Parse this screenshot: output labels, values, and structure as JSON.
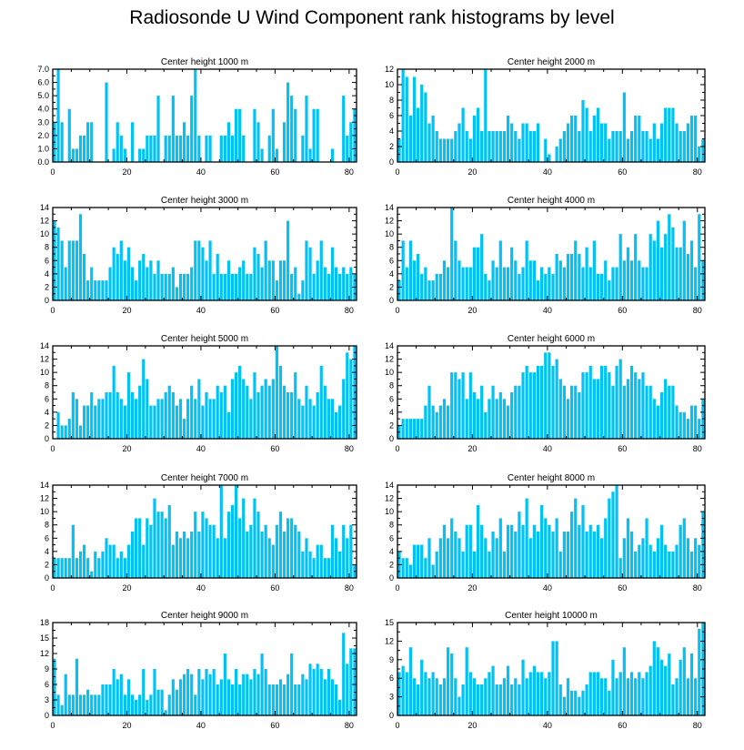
{
  "title": "Radiosonde U Wind Component rank histograms by level",
  "colors": {
    "bar": "#00c2f6",
    "axis": "#000000",
    "background": "#ffffff"
  },
  "chart_data": [
    {
      "type": "bar",
      "title": "Center height 1000 m",
      "xlim": [
        0,
        82
      ],
      "ylim": [
        0,
        7
      ],
      "xticks": [
        0,
        20,
        40,
        60,
        80
      ],
      "yticks": [
        0,
        1,
        2,
        3,
        4,
        5,
        6,
        7
      ],
      "ytick_labels": [
        "0.0",
        "1.0",
        "2.0",
        "3.0",
        "4.0",
        "5.0",
        "6.0",
        "7.0"
      ],
      "values": [
        3,
        7,
        3,
        0,
        4,
        1,
        1,
        2,
        2,
        3,
        3,
        0,
        0,
        0,
        6,
        0,
        1,
        3,
        2,
        1,
        0,
        3,
        0,
        1,
        1,
        2,
        2,
        2,
        5,
        0,
        2,
        2,
        5,
        2,
        2,
        3,
        2,
        5,
        7,
        2,
        0,
        2,
        2,
        0,
        0,
        2,
        2,
        3,
        2,
        4,
        4,
        2,
        0,
        0,
        4,
        3,
        1,
        0,
        2,
        4,
        1,
        0,
        3,
        6,
        5,
        4,
        0,
        2,
        5,
        1,
        4,
        4,
        0,
        0,
        0,
        1,
        0,
        0,
        5,
        2,
        3,
        4
      ]
    },
    {
      "type": "bar",
      "title": "Center height 2000 m",
      "xlim": [
        0,
        82
      ],
      "ylim": [
        0,
        12
      ],
      "xticks": [
        0,
        20,
        40,
        60,
        80
      ],
      "yticks": [
        0,
        2,
        4,
        6,
        8,
        10,
        12
      ],
      "ytick_labels": [
        "0",
        "2",
        "4",
        "6",
        "8",
        "10",
        "12"
      ],
      "values": [
        3,
        12,
        11,
        6,
        11,
        7,
        10,
        9,
        5,
        6,
        4,
        3,
        3,
        3,
        3,
        4,
        5,
        7,
        4,
        3,
        6,
        7,
        4,
        12,
        4,
        4,
        4,
        4,
        4,
        6,
        5,
        4,
        3,
        5,
        5,
        4,
        4,
        5,
        0,
        3,
        1,
        0,
        2,
        3,
        4,
        5,
        6,
        6,
        4,
        8,
        7,
        4,
        6,
        7,
        5,
        5,
        3,
        4,
        4,
        4,
        9,
        3,
        4,
        6,
        6,
        4,
        4,
        3,
        5,
        3,
        5,
        7,
        7,
        7,
        5,
        4,
        4,
        5,
        6,
        6,
        2,
        3
      ]
    },
    {
      "type": "bar",
      "title": "Center height 3000 m",
      "xlim": [
        0,
        82
      ],
      "ylim": [
        0,
        14
      ],
      "xticks": [
        0,
        20,
        40,
        60,
        80
      ],
      "yticks": [
        0,
        2,
        4,
        6,
        8,
        10,
        12,
        14
      ],
      "ytick_labels": [
        "0",
        "2",
        "4",
        "6",
        "8",
        "10",
        "12",
        "14"
      ],
      "values": [
        12,
        11,
        9,
        5,
        9,
        9,
        9,
        13,
        7,
        3,
        5,
        3,
        3,
        3,
        3,
        5,
        8,
        7,
        9,
        6,
        8,
        5,
        3,
        6,
        7,
        5,
        6,
        4,
        6,
        4,
        4,
        4,
        5,
        2,
        4,
        4,
        4,
        5,
        9,
        9,
        8,
        6,
        9,
        4,
        7,
        4,
        4,
        6,
        4,
        4,
        5,
        6,
        4,
        4,
        8,
        7,
        5,
        9,
        6,
        6,
        3,
        6,
        6,
        12,
        4,
        5,
        1,
        3,
        9,
        8,
        4,
        6,
        9,
        5,
        4,
        8,
        5,
        4,
        5,
        4,
        5,
        4
      ]
    },
    {
      "type": "bar",
      "title": "Center height 4000 m",
      "xlim": [
        0,
        82
      ],
      "ylim": [
        0,
        14
      ],
      "xticks": [
        0,
        20,
        40,
        60,
        80
      ],
      "yticks": [
        0,
        2,
        4,
        6,
        8,
        10,
        12,
        14
      ],
      "ytick_labels": [
        "0",
        "2",
        "4",
        "6",
        "8",
        "10",
        "12",
        "14"
      ],
      "values": [
        3,
        9,
        5,
        9,
        6,
        7,
        4,
        5,
        3,
        3,
        4,
        4,
        6,
        5,
        14,
        9,
        6,
        5,
        5,
        5,
        8,
        8,
        10,
        4,
        3,
        6,
        5,
        9,
        5,
        5,
        8,
        6,
        4,
        5,
        9,
        6,
        6,
        3,
        5,
        4,
        5,
        4,
        7,
        6,
        5,
        7,
        7,
        9,
        7,
        5,
        8,
        5,
        9,
        4,
        4,
        6,
        3,
        5,
        5,
        10,
        6,
        8,
        6,
        10,
        6,
        5,
        5,
        10,
        9,
        12,
        8,
        10,
        13,
        11,
        8,
        8,
        12,
        7,
        9,
        5,
        13,
        6
      ]
    },
    {
      "type": "bar",
      "title": "Center height 5000 m",
      "xlim": [
        0,
        82
      ],
      "ylim": [
        0,
        14
      ],
      "xticks": [
        0,
        20,
        40,
        60,
        80
      ],
      "yticks": [
        0,
        2,
        4,
        6,
        8,
        10,
        12,
        14
      ],
      "ytick_labels": [
        "0",
        "2",
        "4",
        "6",
        "8",
        "10",
        "12",
        "14"
      ],
      "values": [
        0,
        4,
        2,
        2,
        3,
        7,
        6,
        2,
        5,
        5,
        7,
        5,
        6,
        6,
        7,
        7,
        11,
        7,
        6,
        5,
        10,
        7,
        6,
        8,
        12,
        9,
        5,
        5,
        6,
        6,
        7,
        8,
        7,
        5,
        6,
        3,
        6,
        8,
        6,
        9,
        5,
        7,
        6,
        6,
        8,
        7,
        8,
        4,
        9,
        10,
        11,
        9,
        8,
        6,
        10,
        7,
        8,
        9,
        8,
        9,
        14,
        11,
        8,
        7,
        7,
        10,
        6,
        5,
        8,
        6,
        5,
        7,
        11,
        8,
        6,
        6,
        4,
        5,
        9,
        13,
        12,
        14
      ]
    },
    {
      "type": "bar",
      "title": "Center height 6000 m",
      "xlim": [
        0,
        82
      ],
      "ylim": [
        0,
        14
      ],
      "xticks": [
        0,
        20,
        40,
        60,
        80
      ],
      "yticks": [
        0,
        2,
        4,
        6,
        8,
        10,
        12,
        14
      ],
      "ytick_labels": [
        "0",
        "2",
        "4",
        "6",
        "8",
        "10",
        "12",
        "14"
      ],
      "values": [
        2,
        3,
        3,
        3,
        3,
        3,
        3,
        5,
        8,
        5,
        4,
        5,
        6,
        5,
        10,
        10,
        9,
        10,
        6,
        10,
        7,
        6,
        8,
        4,
        6,
        8,
        6,
        7,
        6,
        5,
        7,
        8,
        8,
        10,
        11,
        10,
        10,
        11,
        11,
        13,
        13,
        11,
        12,
        9,
        8,
        6,
        8,
        8,
        7,
        10,
        10,
        11,
        9,
        9,
        11,
        11,
        10,
        8,
        11,
        12,
        8,
        9,
        11,
        10,
        9,
        10,
        8,
        8,
        6,
        5,
        7,
        9,
        8,
        8,
        5,
        4,
        4,
        3,
        5,
        5,
        3,
        6
      ]
    },
    {
      "type": "bar",
      "title": "Center height 7000 m",
      "xlim": [
        0,
        82
      ],
      "ylim": [
        0,
        14
      ],
      "xticks": [
        0,
        20,
        40,
        60,
        80
      ],
      "yticks": [
        0,
        2,
        4,
        6,
        8,
        10,
        12,
        14
      ],
      "ytick_labels": [
        "0",
        "2",
        "4",
        "6",
        "8",
        "10",
        "12",
        "14"
      ],
      "values": [
        3,
        3,
        3,
        3,
        3,
        8,
        3,
        4,
        5,
        3,
        1,
        4,
        3,
        4,
        6,
        5,
        5,
        3,
        4,
        3,
        5,
        7,
        9,
        9,
        5,
        9,
        8,
        12,
        10,
        10,
        9,
        11,
        5,
        7,
        6,
        7,
        6,
        7,
        10,
        7,
        10,
        9,
        8,
        8,
        6,
        14,
        6,
        10,
        11,
        14,
        9,
        12,
        7,
        8,
        12,
        10,
        7,
        8,
        6,
        5,
        8,
        10,
        7,
        9,
        9,
        8,
        7,
        4,
        6,
        4,
        3,
        5,
        5,
        3,
        3,
        8,
        6,
        4,
        8,
        6,
        8,
        2
      ]
    },
    {
      "type": "bar",
      "title": "Center height 8000 m",
      "xlim": [
        0,
        82
      ],
      "ylim": [
        0,
        14
      ],
      "xticks": [
        0,
        20,
        40,
        60,
        80
      ],
      "yticks": [
        0,
        2,
        4,
        6,
        8,
        10,
        12,
        14
      ],
      "ytick_labels": [
        "0",
        "2",
        "4",
        "6",
        "8",
        "10",
        "12",
        "14"
      ],
      "values": [
        4,
        3,
        3,
        2,
        5,
        5,
        5,
        3,
        6,
        2,
        4,
        6,
        8,
        6,
        9,
        7,
        6,
        4,
        8,
        8,
        4,
        11,
        8,
        6,
        4,
        7,
        6,
        9,
        4,
        8,
        8,
        7,
        10,
        8,
        12,
        6,
        8,
        7,
        11,
        9,
        8,
        7,
        9,
        4,
        7,
        7,
        10,
        12,
        8,
        11,
        7,
        8,
        7,
        8,
        6,
        9,
        12,
        13,
        14,
        3,
        6,
        9,
        7,
        4,
        5,
        6,
        9,
        5,
        4,
        6,
        8,
        5,
        4,
        4,
        5,
        8,
        9,
        6,
        4,
        6,
        5,
        10
      ]
    },
    {
      "type": "bar",
      "title": "Center height 9000 m",
      "xlim": [
        0,
        82
      ],
      "ylim": [
        0,
        18
      ],
      "xticks": [
        0,
        20,
        40,
        60,
        80
      ],
      "yticks": [
        0,
        3,
        6,
        9,
        12,
        15,
        18
      ],
      "ytick_labels": [
        "0",
        "3",
        "6",
        "9",
        "12",
        "15",
        "18"
      ],
      "values": [
        11,
        4,
        2,
        8,
        4,
        4,
        11,
        4,
        4,
        5,
        4,
        4,
        4,
        6,
        6,
        6,
        9,
        7,
        8,
        4,
        7,
        4,
        3,
        4,
        9,
        3,
        4,
        9,
        5,
        5,
        1,
        4,
        7,
        5,
        7,
        8,
        9,
        8,
        4,
        9,
        7,
        9,
        8,
        9,
        6,
        7,
        12,
        7,
        6,
        9,
        6,
        8,
        8,
        7,
        9,
        8,
        12,
        9,
        6,
        6,
        6,
        7,
        6,
        8,
        12,
        6,
        6,
        8,
        7,
        10,
        9,
        10,
        9,
        7,
        9,
        7,
        6,
        3,
        16,
        10,
        13,
        13
      ]
    },
    {
      "type": "bar",
      "title": "Center height 10000 m",
      "xlim": [
        0,
        82
      ],
      "ylim": [
        0,
        15
      ],
      "xticks": [
        0,
        20,
        40,
        60,
        80
      ],
      "yticks": [
        0,
        3,
        6,
        9,
        12,
        15
      ],
      "ytick_labels": [
        "0",
        "3",
        "6",
        "9",
        "12",
        "15"
      ],
      "values": [
        7,
        8,
        7,
        11,
        6,
        5,
        9,
        7,
        6,
        7,
        6,
        5,
        6,
        11,
        10,
        6,
        3,
        5,
        11,
        7,
        6,
        5,
        5,
        6,
        7,
        8,
        5,
        5,
        6,
        8,
        5,
        6,
        5,
        9,
        6,
        7,
        8,
        7,
        7,
        6,
        7,
        12,
        12,
        5,
        3,
        6,
        4,
        4,
        3,
        4,
        5,
        7,
        7,
        7,
        6,
        6,
        4,
        9,
        6,
        7,
        11,
        6,
        7,
        6,
        7,
        6,
        7,
        8,
        12,
        11,
        9,
        8,
        10,
        5,
        6,
        9,
        11,
        6,
        10,
        6,
        14,
        15
      ]
    }
  ]
}
